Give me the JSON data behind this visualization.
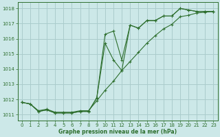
{
  "title": "Graphe pression niveau de la mer (hPa)",
  "bg_color": "#cce8e8",
  "grid_color": "#aacccc",
  "line_color": "#2d6e2d",
  "marker_color": "#2d6e2d",
  "xlim": [
    -0.5,
    23.5
  ],
  "ylim": [
    1010.6,
    1018.4
  ],
  "yticks": [
    1011,
    1012,
    1013,
    1014,
    1015,
    1016,
    1017,
    1018
  ],
  "xticks": [
    0,
    1,
    2,
    3,
    4,
    5,
    6,
    7,
    8,
    9,
    10,
    11,
    12,
    13,
    14,
    15,
    16,
    17,
    18,
    19,
    20,
    21,
    22,
    23
  ],
  "series1_x": [
    0,
    1,
    2,
    3,
    4,
    5,
    6,
    7,
    8,
    9,
    10,
    11,
    12,
    13,
    14,
    15,
    16,
    17,
    18,
    19,
    20,
    21,
    22,
    23
  ],
  "series1_y": [
    1011.8,
    1011.7,
    1011.2,
    1011.3,
    1011.1,
    1011.1,
    1011.1,
    1011.2,
    1011.2,
    1012.1,
    1016.3,
    1016.5,
    1014.6,
    1016.9,
    1016.7,
    1017.2,
    1017.2,
    1017.5,
    1017.5,
    1018.0,
    1017.9,
    1017.8,
    1017.8,
    1017.8
  ],
  "series2_x": [
    0,
    1,
    2,
    3,
    4,
    5,
    6,
    7,
    8,
    9,
    10,
    11,
    12,
    13,
    14,
    15,
    16,
    17,
    18,
    19,
    20,
    21,
    22,
    23
  ],
  "series2_y": [
    1011.8,
    1011.7,
    1011.2,
    1011.3,
    1011.1,
    1011.1,
    1011.1,
    1011.2,
    1011.2,
    1012.1,
    1015.7,
    1014.6,
    1013.9,
    1016.9,
    1016.7,
    1017.2,
    1017.2,
    1017.5,
    1017.5,
    1018.0,
    1017.9,
    1017.8,
    1017.8,
    1017.8
  ],
  "series3_x": [
    0,
    1,
    2,
    3,
    4,
    5,
    6,
    7,
    8,
    9,
    10,
    11,
    12,
    13,
    14,
    15,
    16,
    17,
    18,
    19,
    20,
    21,
    22,
    23
  ],
  "series3_y": [
    1011.8,
    1011.7,
    1011.25,
    1011.35,
    1011.15,
    1011.15,
    1011.15,
    1011.25,
    1011.25,
    1011.9,
    1012.6,
    1013.2,
    1013.9,
    1014.5,
    1015.1,
    1015.7,
    1016.2,
    1016.65,
    1016.95,
    1017.45,
    1017.55,
    1017.7,
    1017.75,
    1017.8
  ]
}
